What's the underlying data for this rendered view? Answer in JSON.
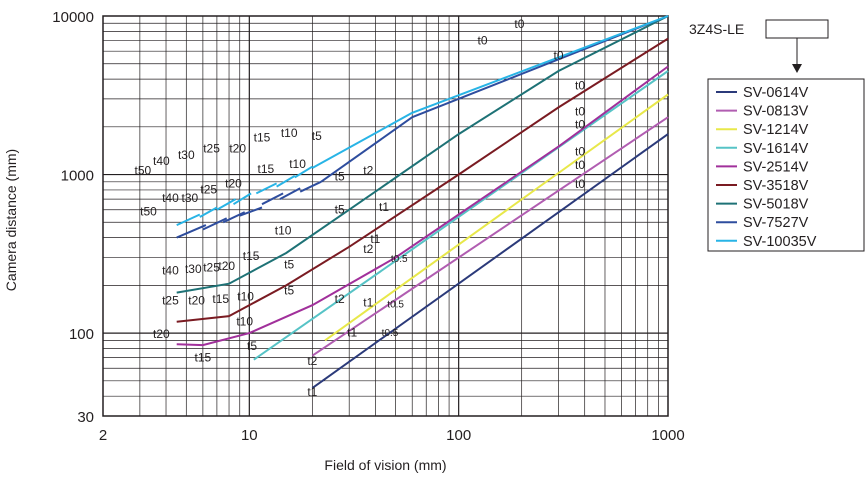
{
  "chart_data": {
    "type": "line",
    "title": "",
    "xlabel": "Field of vision (mm)",
    "ylabel": "Camera distance (mm)",
    "x_scale": "log",
    "y_scale": "log",
    "xlim": [
      2,
      1000
    ],
    "ylim": [
      30,
      10000
    ],
    "grid": true,
    "x_tick_labels": [
      "2",
      "10",
      "100",
      "1000"
    ],
    "x_tick_values": [
      2,
      10,
      100,
      1000
    ],
    "y_tick_labels": [
      "30",
      "100",
      "1000",
      "10000"
    ],
    "y_tick_values": [
      30,
      100,
      1000,
      10000
    ],
    "camera_label": "3Z4S-LE",
    "legend_position": "right",
    "series": [
      {
        "name": "SV-0614V",
        "color": "#2b3a7a",
        "segments": [
          [
            [
              20,
              45
            ],
            [
              1000,
              1800
            ]
          ]
        ],
        "labels": [
          {
            "text": "t1",
            "x": 20,
            "y": 40
          },
          {
            "text": "t0",
            "x": 380,
            "y": 820
          }
        ]
      },
      {
        "name": "SV-0813V",
        "color": "#b15db1",
        "segments": [
          [
            [
              20,
              72
            ],
            [
              1000,
              2300
            ]
          ]
        ],
        "labels": [
          {
            "text": "t2",
            "x": 20,
            "y": 63
          },
          {
            "text": "t1",
            "x": 31,
            "y": 95
          },
          {
            "text": "t0.5",
            "x": 47,
            "y": 96
          },
          {
            "text": "t0",
            "x": 380,
            "y": 1080
          }
        ]
      },
      {
        "name": "SV-1214V",
        "color": "#e8e84a",
        "segments": [
          [
            [
              23,
              90
            ],
            [
              1000,
              3200
            ]
          ]
        ],
        "labels": [
          {
            "text": "t2",
            "x": 27,
            "y": 155
          },
          {
            "text": "t1",
            "x": 37,
            "y": 147
          },
          {
            "text": "t0.5",
            "x": 50,
            "y": 145
          },
          {
            "text": "t0",
            "x": 380,
            "y": 1320
          }
        ]
      },
      {
        "name": "SV-1614V",
        "color": "#56c3c6",
        "segments": [
          [
            [
              10.5,
              68
            ],
            [
              1000,
              4500
            ]
          ]
        ],
        "labels": [
          {
            "text": "t5",
            "x": 10.3,
            "y": 78
          },
          {
            "text": "t2",
            "x": 37,
            "y": 320
          },
          {
            "text": "t1",
            "x": 40,
            "y": 370
          },
          {
            "text": "t0.5",
            "x": 52,
            "y": 280
          },
          {
            "text": "t0",
            "x": 380,
            "y": 1950
          }
        ]
      },
      {
        "name": "SV-2514V",
        "color": "#a1309b",
        "segments": [
          [
            [
              4.5,
              85
            ],
            [
              6,
              84
            ],
            [
              10,
              100
            ],
            [
              20,
              150
            ],
            [
              50,
              300
            ],
            [
              100,
              560
            ],
            [
              300,
              1500
            ],
            [
              1000,
              4800
            ]
          ]
        ],
        "labels": [
          {
            "text": "t20",
            "x": 3.8,
            "y": 93
          },
          {
            "text": "t15",
            "x": 6.0,
            "y": 66
          },
          {
            "text": "t10",
            "x": 9.5,
            "y": 112
          },
          {
            "text": "t5",
            "x": 15.5,
            "y": 175
          },
          {
            "text": "t0",
            "x": 380,
            "y": 2350
          }
        ]
      },
      {
        "name": "SV-3518V",
        "color": "#7a1b22",
        "segments": [
          [
            [
              4.5,
              118
            ],
            [
              8,
              128
            ],
            [
              15,
              200
            ],
            [
              30,
              350
            ],
            [
              100,
              1000
            ],
            [
              300,
              2650
            ],
            [
              1000,
              7200
            ]
          ]
        ],
        "labels": [
          {
            "text": "t25",
            "x": 4.2,
            "y": 152
          },
          {
            "text": "t20",
            "x": 5.6,
            "y": 152
          },
          {
            "text": "t15",
            "x": 7.3,
            "y": 155
          },
          {
            "text": "t10",
            "x": 9.6,
            "y": 160
          },
          {
            "text": "t5",
            "x": 15.5,
            "y": 255
          },
          {
            "text": "t0",
            "x": 380,
            "y": 3450
          }
        ]
      },
      {
        "name": "SV-5018V",
        "color": "#1e7276",
        "segments": [
          [
            [
              4.5,
              180
            ],
            [
              8,
              205
            ],
            [
              15,
              320
            ],
            [
              30,
              600
            ],
            [
              100,
              1800
            ],
            [
              300,
              4500
            ],
            [
              1000,
              10000
            ]
          ]
        ],
        "labels": [
          {
            "text": "t40",
            "x": 4.2,
            "y": 235
          },
          {
            "text": "t30",
            "x": 5.4,
            "y": 240
          },
          {
            "text": "t25",
            "x": 6.6,
            "y": 245
          },
          {
            "text": "t20",
            "x": 7.8,
            "y": 250
          },
          {
            "text": "t15",
            "x": 10.2,
            "y": 290
          },
          {
            "text": "t10",
            "x": 14.5,
            "y": 420
          },
          {
            "text": "t5",
            "x": 27,
            "y": 570
          },
          {
            "text": "t0",
            "x": 300,
            "y": 5300
          }
        ]
      },
      {
        "name": "SV-7527V",
        "color": "#2e4d9e",
        "segments": [
          [
            [
              4.5,
              400
            ],
            [
              6.2,
              480
            ]
          ],
          [
            [
              6.0,
              450
            ],
            [
              7.8,
              530
            ]
          ],
          [
            [
              7.5,
              500
            ],
            [
              9.5,
              580
            ]
          ],
          [
            [
              9,
              550
            ],
            [
              11.5,
              620
            ]
          ],
          [
            [
              11.5,
              650
            ],
            [
              14.5,
              760
            ]
          ],
          [
            [
              14,
              700
            ],
            [
              17.5,
              820
            ]
          ],
          [
            [
              17.5,
              780
            ],
            [
              22,
              900
            ]
          ],
          [
            [
              22,
              900
            ],
            [
              60,
              2300
            ]
          ],
          [
            [
              60,
              2300
            ],
            [
              1000,
              10000
            ]
          ]
        ],
        "labels": [
          {
            "text": "t50",
            "x": 3.3,
            "y": 550
          },
          {
            "text": "t40",
            "x": 4.2,
            "y": 670
          },
          {
            "text": "t30",
            "x": 5.2,
            "y": 670
          },
          {
            "text": "t25",
            "x": 6.4,
            "y": 760
          },
          {
            "text": "t20",
            "x": 8.4,
            "y": 830
          },
          {
            "text": "t15",
            "x": 12,
            "y": 1020
          },
          {
            "text": "t10",
            "x": 17,
            "y": 1100
          },
          {
            "text": "t5",
            "x": 27,
            "y": 920
          },
          {
            "text": "t2",
            "x": 37,
            "y": 1000
          },
          {
            "text": "t1",
            "x": 44,
            "y": 590
          },
          {
            "text": "t0",
            "x": 195,
            "y": 8400
          }
        ]
      },
      {
        "name": "SV-10035V",
        "color": "#28b4e6",
        "segments": [
          [
            [
              4.5,
              480
            ],
            [
              5.8,
              560
            ]
          ],
          [
            [
              5.8,
              540
            ],
            [
              7.0,
              620
            ]
          ],
          [
            [
              7.0,
              600
            ],
            [
              8.6,
              700
            ]
          ],
          [
            [
              8.4,
              650
            ],
            [
              10.2,
              760
            ]
          ],
          [
            [
              10.8,
              760
            ],
            [
              13.5,
              880
            ]
          ],
          [
            [
              13.5,
              840
            ],
            [
              16.5,
              980
            ]
          ],
          [
            [
              16.5,
              960
            ],
            [
              20,
              1120
            ]
          ],
          [
            [
              20,
              1100
            ],
            [
              60,
              2450
            ]
          ],
          [
            [
              60,
              2450
            ],
            [
              1000,
              10000
            ]
          ]
        ],
        "labels": [
          {
            "text": "t50",
            "x": 3.1,
            "y": 1000
          },
          {
            "text": "t40",
            "x": 3.8,
            "y": 1150
          },
          {
            "text": "t30",
            "x": 5.0,
            "y": 1250
          },
          {
            "text": "t25",
            "x": 6.6,
            "y": 1380
          },
          {
            "text": "t20",
            "x": 8.8,
            "y": 1380
          },
          {
            "text": "t15",
            "x": 11.5,
            "y": 1620
          },
          {
            "text": "t10",
            "x": 15.5,
            "y": 1720
          },
          {
            "text": "t5",
            "x": 21,
            "y": 1650
          },
          {
            "text": "t0",
            "x": 130,
            "y": 6600
          }
        ]
      }
    ]
  }
}
